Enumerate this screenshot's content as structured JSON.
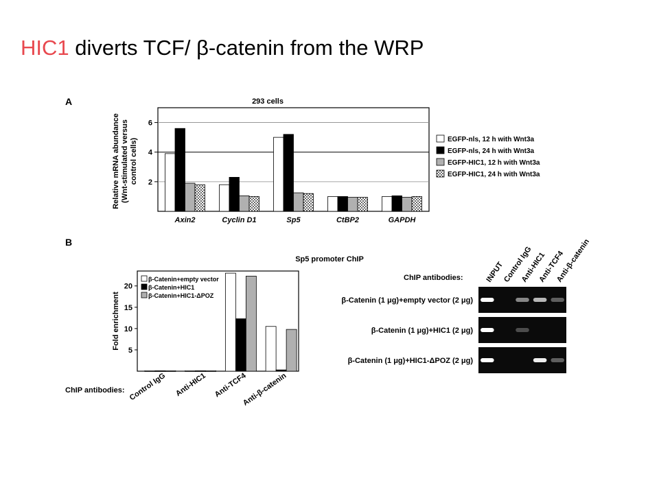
{
  "slide": {
    "title_highlight": "HIC1",
    "title_rest": " diverts TCF/ β-catenin from the WRP",
    "accent_color": "#e8484e"
  },
  "panel_a": {
    "letter": "A",
    "ylabel_lines": [
      "Relative mRNA abundance",
      "(Wnt-stimulated versus",
      "control cells)"
    ]
  },
  "panel_b": {
    "letter": "B",
    "chart_xlabel_prefix": "ChIP antibodies:",
    "ylabel": "Fold enrichment"
  },
  "gel": {
    "header": "ChIP antibodies:",
    "lanes": [
      "INPUT",
      "Control IgG",
      "Anti-HIC1",
      "Anti-TCF4",
      "Anti-β-catenin"
    ],
    "rows": [
      {
        "label": "β-Catenin (1 μg)+empty vector (2 μg)",
        "bands": [
          1.0,
          0,
          0.55,
          0.75,
          0.35
        ]
      },
      {
        "label": "β-Catenin (1 μg)+HIC1 (2 μg)",
        "bands": [
          1.0,
          0,
          0.25,
          0,
          0
        ]
      },
      {
        "label": "β-Catenin (1 μg)+HIC1-ΔPOZ (2 μg)",
        "bands": [
          1.0,
          0,
          0,
          0.95,
          0.35
        ]
      }
    ]
  },
  "chart_data": [
    {
      "type": "bar",
      "title": "293 cells",
      "xlabel": "",
      "ylabel": "Relative mRNA abundance (Wnt-stimulated versus control cells)",
      "categories": [
        "Axin2",
        "Cyclin D1",
        "Sp5",
        "CtBP2",
        "GAPDH"
      ],
      "ylim": [
        0,
        7.0
      ],
      "yticks": [
        2,
        4,
        6
      ],
      "grid": true,
      "legend_position": "right",
      "series": [
        {
          "name": "EGFP-nls, 12 h with Wnt3a",
          "fill": "#ffffff",
          "values": [
            3.9,
            1.8,
            5.0,
            1.0,
            1.0
          ]
        },
        {
          "name": "EGFP-nls, 24 h with Wnt3a",
          "fill": "#000000",
          "values": [
            5.6,
            2.3,
            5.2,
            1.0,
            1.05
          ]
        },
        {
          "name": "EGFP-HIC1, 12 h with Wnt3a",
          "fill": "#b0b0b0",
          "values": [
            1.9,
            1.05,
            1.25,
            0.95,
            0.95
          ]
        },
        {
          "name": "EGFP-HIC1, 24 h with Wnt3a",
          "fill": "pattern-dots",
          "values": [
            1.8,
            1.0,
            1.2,
            0.95,
            1.0
          ]
        }
      ]
    },
    {
      "type": "bar",
      "title": "Sp5 promoter ChIP",
      "xlabel": "ChIP antibodies:",
      "ylabel": "Fold enrichment",
      "categories": [
        "Control IgG",
        "Anti-HIC1",
        "Anti-TCF4",
        "Anti-β-catenin"
      ],
      "ylim": [
        0,
        23.5
      ],
      "yticks": [
        5,
        10,
        15,
        20
      ],
      "grid": false,
      "legend_position": "top-left",
      "series": [
        {
          "name": "β-Catenin+empty vector",
          "fill": "#ffffff",
          "values": [
            0.1,
            0.1,
            23.0,
            10.5
          ]
        },
        {
          "name": "β-Catenin+HIC1",
          "fill": "#000000",
          "values": [
            0.1,
            0.1,
            12.3,
            0.3
          ]
        },
        {
          "name": "β-Catenin+HIC1-ΔPOZ",
          "fill": "#b0b0b0",
          "values": [
            0.1,
            0.1,
            22.3,
            9.8
          ]
        }
      ]
    }
  ]
}
